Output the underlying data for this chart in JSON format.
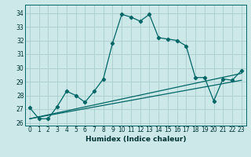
{
  "xlabel": "Humidex (Indice chaleur)",
  "bg_color": "#cce8e8",
  "grid_color": "#aacccc",
  "line_color": "#006666",
  "xlim": [
    -0.5,
    23.5
  ],
  "ylim": [
    25.8,
    34.6
  ],
  "xticks": [
    0,
    1,
    2,
    3,
    4,
    5,
    6,
    7,
    8,
    9,
    10,
    11,
    12,
    13,
    14,
    15,
    16,
    17,
    18,
    19,
    20,
    21,
    22,
    23
  ],
  "yticks": [
    26,
    27,
    28,
    29,
    30,
    31,
    32,
    33,
    34
  ],
  "series": [
    {
      "x": [
        0,
        1,
        2,
        3,
        4,
        5,
        6,
        7,
        8,
        9,
        10,
        11,
        12,
        13,
        14,
        15,
        16,
        17,
        18,
        19,
        20,
        21,
        22,
        23
      ],
      "y": [
        27.1,
        26.3,
        26.3,
        27.2,
        28.3,
        28.0,
        27.5,
        28.3,
        29.2,
        31.8,
        33.9,
        33.7,
        33.4,
        33.9,
        32.2,
        32.1,
        32.0,
        31.6,
        29.3,
        29.3,
        27.6,
        29.2,
        29.1,
        29.8
      ],
      "marker": true
    },
    {
      "x": [
        0,
        23
      ],
      "y": [
        26.3,
        29.6
      ],
      "marker": false
    },
    {
      "x": [
        0,
        23
      ],
      "y": [
        26.3,
        29.1
      ],
      "marker": false
    }
  ]
}
